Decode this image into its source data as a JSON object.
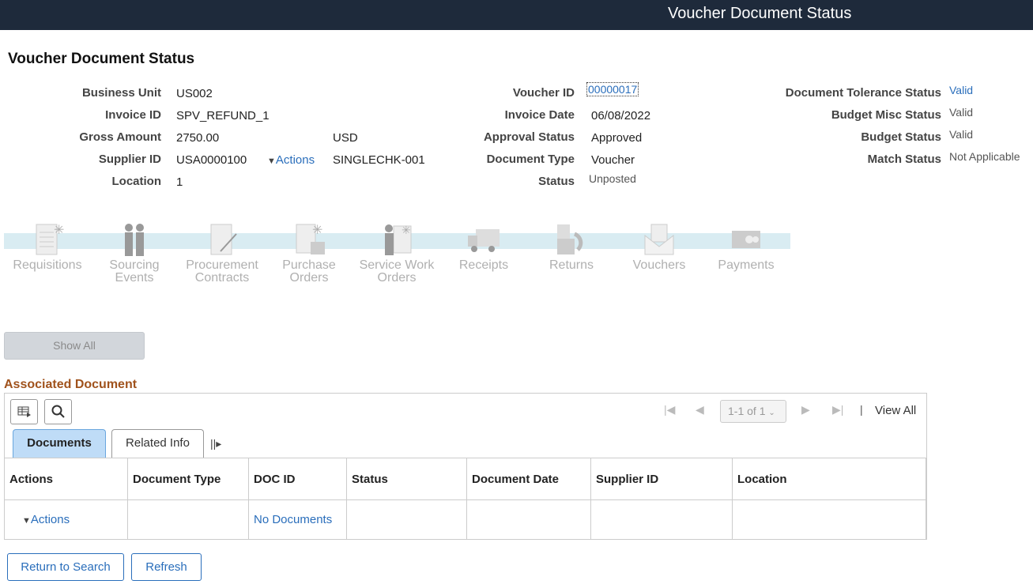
{
  "header": {
    "title": "Voucher Document Status"
  },
  "page_title": "Voucher Document Status",
  "fields": {
    "business_unit": {
      "label": "Business Unit",
      "value": "US002"
    },
    "invoice_id": {
      "label": "Invoice ID",
      "value": "SPV_REFUND_1"
    },
    "gross_amount": {
      "label": "Gross Amount",
      "value": "2750.00",
      "currency": "USD"
    },
    "supplier_id": {
      "label": "Supplier ID",
      "value": "USA0000100",
      "actions": "Actions",
      "supplier_name": "SINGLECHK-001"
    },
    "location": {
      "label": "Location",
      "value": "1"
    },
    "voucher_id": {
      "label": "Voucher ID",
      "value": "00000017"
    },
    "invoice_date": {
      "label": "Invoice Date",
      "value": "06/08/2022"
    },
    "approval_status": {
      "label": "Approval Status",
      "value": "Approved"
    },
    "document_type": {
      "label": "Document Type",
      "value": "Voucher"
    },
    "status": {
      "label": "Status",
      "value": "Unposted"
    },
    "doc_tolerance": {
      "label": "Document Tolerance Status",
      "value": "Valid"
    },
    "budget_misc": {
      "label": "Budget Misc Status",
      "value": "Valid"
    },
    "budget_status": {
      "label": "Budget Status",
      "value": "Valid"
    },
    "match_status": {
      "label": "Match Status",
      "value": "Not Applicable"
    }
  },
  "tiles": [
    "Requisitions",
    "Sourcing Events",
    "Procurement Contracts",
    "Purchase Orders",
    "Service Work Orders",
    "Receipts",
    "Returns",
    "Vouchers",
    "Payments"
  ],
  "show_all": "Show All",
  "assoc": {
    "title": "Associated Document",
    "pager": "1-1 of 1",
    "view_all": "View All",
    "tabs": [
      "Documents",
      "Related Info"
    ],
    "columns": [
      "Actions",
      "Document Type",
      "DOC ID",
      "Status",
      "Document Date",
      "Supplier ID",
      "Location"
    ],
    "rows": [
      {
        "actions": "Actions",
        "doc_type": "",
        "doc_id": "No Documents",
        "status": "",
        "doc_date": "",
        "supplier_id": "",
        "location": ""
      }
    ]
  },
  "buttons": {
    "return": "Return to Search",
    "refresh": "Refresh"
  },
  "colors": {
    "header_bg": "#1e2a3b",
    "link": "#2a6ebb",
    "section_title": "#a0521c",
    "active_tab": "#bfdcf7"
  }
}
